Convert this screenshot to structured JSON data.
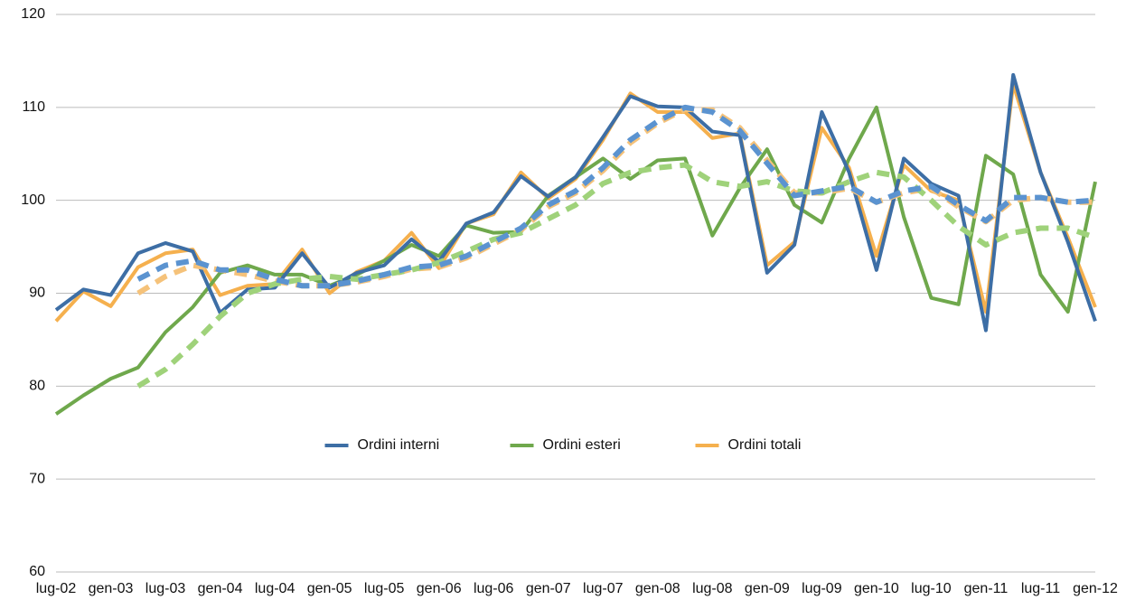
{
  "chart_data": {
    "type": "line",
    "categories": [
      "lug-02",
      null,
      "gen-03",
      null,
      "lug-03",
      null,
      "gen-04",
      null,
      "lug-04",
      null,
      "gen-05",
      null,
      "lug-05",
      null,
      "gen-06",
      null,
      "lug-06",
      null,
      "gen-07",
      null,
      "lug-07",
      null,
      "gen-08",
      null,
      "lug-08",
      null,
      "gen-09",
      null,
      "lug-09",
      null,
      "gen-10",
      null,
      "lug-10",
      null,
      "gen-11",
      null,
      "lug-11",
      null,
      "gen-12"
    ],
    "ylim": [
      60,
      120
    ],
    "yticks": [
      60,
      70,
      80,
      90,
      100,
      110,
      120
    ],
    "grid": true,
    "legend": "center",
    "series": [
      {
        "name": "Ordini interni",
        "color": "#3d6ea5",
        "values": [
          88.2,
          90.4,
          89.8,
          94.3,
          95.4,
          94.5,
          87.9,
          90.4,
          90.6,
          94.3,
          90.6,
          92.2,
          93.0,
          95.8,
          93.4,
          97.5,
          98.7,
          102.6,
          100.4,
          102.5,
          106.8,
          111.2,
          110.1,
          110.0,
          107.4,
          107.0,
          92.2,
          95.2,
          109.5,
          103.0,
          92.5,
          104.5,
          101.8,
          100.5,
          86.0,
          113.5,
          103.0,
          95.5,
          87.0
        ]
      },
      {
        "name": "Ordini esteri",
        "color": "#6fa84c",
        "values": [
          77.0,
          79.0,
          80.8,
          82.0,
          85.8,
          88.5,
          92.2,
          93.0,
          92.0,
          92.0,
          90.8,
          92.0,
          93.5,
          95.2,
          94.0,
          97.3,
          96.5,
          96.6,
          100.5,
          102.5,
          104.5,
          102.3,
          104.3,
          104.5,
          96.2,
          101.3,
          105.5,
          99.5,
          97.6,
          104.5,
          110.0,
          98.2,
          89.5,
          88.8,
          104.8,
          102.8,
          92.0,
          88.0,
          102.0
        ]
      },
      {
        "name": "Ordini totali",
        "color": "#f5b04e",
        "values": [
          87.0,
          90.2,
          88.6,
          92.8,
          94.3,
          94.7,
          89.8,
          90.8,
          91.0,
          94.7,
          90.0,
          92.3,
          93.5,
          96.5,
          92.7,
          97.5,
          98.5,
          103.0,
          100.2,
          102.3,
          106.5,
          111.5,
          109.5,
          109.5,
          106.7,
          107.2,
          93.0,
          95.5,
          107.8,
          103.5,
          94.0,
          103.8,
          101.0,
          100.0,
          88.0,
          112.5,
          103.0,
          96.0,
          88.5
        ]
      },
      {
        "color": "#f5c27a",
        "dashed": true,
        "values": [
          null,
          null,
          null,
          90.0,
          91.8,
          93.0,
          92.5,
          92.0,
          91.3,
          90.8,
          90.8,
          91.2,
          91.8,
          92.6,
          92.8,
          93.8,
          95.3,
          96.8,
          99.3,
          100.8,
          103.2,
          106.2,
          108.3,
          109.8,
          109.7,
          107.8,
          104.3,
          100.8,
          100.8,
          101.3,
          99.8,
          100.8,
          101.3,
          99.3,
          97.7,
          100.0,
          100.3,
          99.8,
          99.8
        ]
      },
      {
        "color": "#9fd27a",
        "dashed": true,
        "values": [
          null,
          null,
          null,
          80.0,
          81.8,
          84.5,
          87.5,
          90.0,
          91.0,
          91.5,
          91.8,
          91.5,
          92.0,
          92.5,
          93.3,
          94.5,
          95.8,
          96.5,
          98.0,
          99.5,
          101.8,
          103.0,
          103.5,
          103.8,
          102.0,
          101.5,
          102.0,
          101.0,
          100.8,
          102.0,
          103.0,
          102.5,
          100.0,
          97.2,
          95.2,
          96.5,
          97.0,
          97.0,
          96.0
        ]
      },
      {
        "color": "#5b93d0",
        "dashed": true,
        "values": [
          null,
          null,
          null,
          91.5,
          93.0,
          93.5,
          92.5,
          92.5,
          91.5,
          90.8,
          90.8,
          91.3,
          92.0,
          92.8,
          93.0,
          94.0,
          95.5,
          97.0,
          99.5,
          101.0,
          103.5,
          106.5,
          108.5,
          110.0,
          109.5,
          107.5,
          104.0,
          100.5,
          101.0,
          101.5,
          99.8,
          101.0,
          101.5,
          99.5,
          97.8,
          100.3,
          100.3,
          99.8,
          100.0
        ]
      }
    ]
  }
}
